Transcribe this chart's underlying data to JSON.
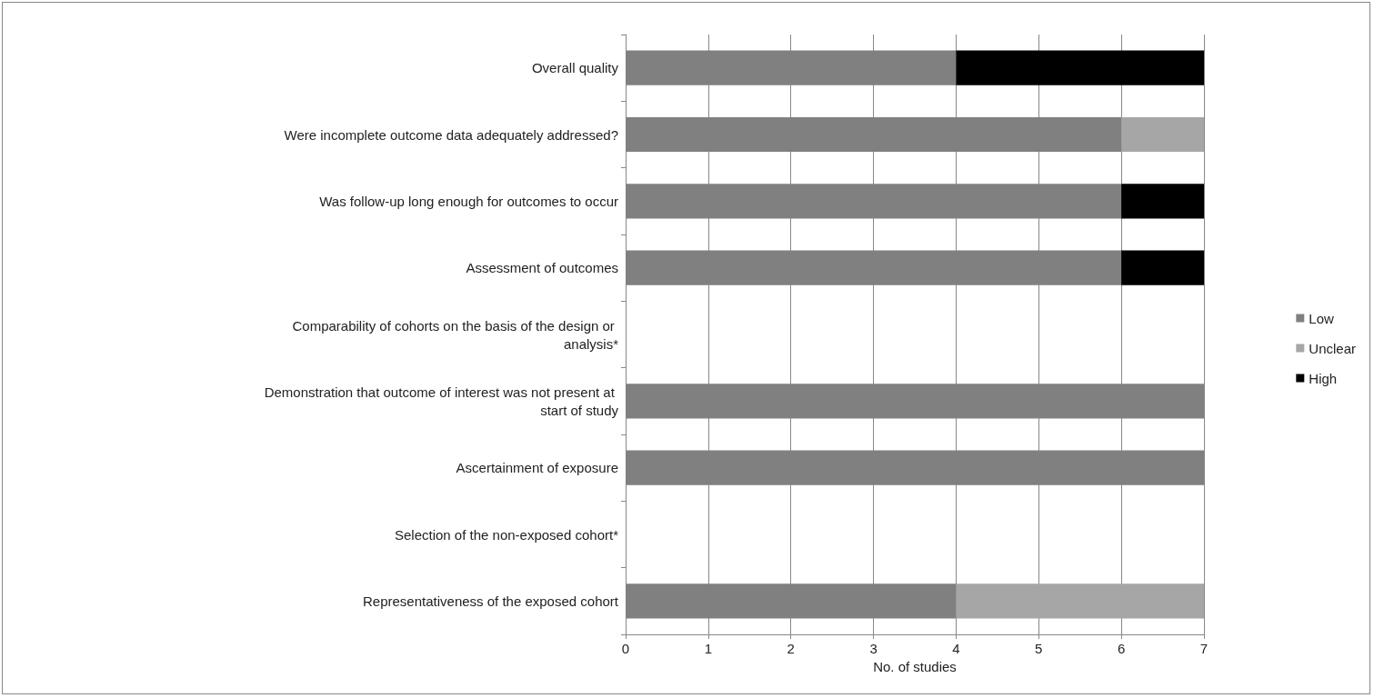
{
  "chart_data": {
    "type": "bar",
    "orientation": "horizontal",
    "stacked": true,
    "categories": [
      "Overall quality",
      "Were incomplete outcome data adequately addressed?",
      "Was follow-up long enough for outcomes to occur",
      "Assessment of outcomes",
      "Comparability of cohorts on the basis of the design or analysis*",
      "Demonstration that outcome of interest was not present at start of study",
      "Ascertainment of exposure",
      "Selection of the non-exposed cohort*",
      "Representativeness of the exposed cohort"
    ],
    "series": [
      {
        "name": "Low",
        "color": "#808080",
        "values": [
          4,
          6,
          6,
          6,
          0,
          7,
          7,
          0,
          4
        ]
      },
      {
        "name": "Unclear",
        "color": "#a6a6a6",
        "values": [
          0,
          1,
          0,
          0,
          0,
          0,
          0,
          0,
          3
        ]
      },
      {
        "name": "High",
        "color": "#000000",
        "values": [
          3,
          0,
          1,
          1,
          0,
          0,
          0,
          0,
          0
        ]
      }
    ],
    "xlabel": "No. of studies",
    "xlim": [
      0,
      7
    ],
    "xticks": [
      0,
      1,
      2,
      3,
      4,
      5,
      6,
      7
    ],
    "grid": "x",
    "legend": "right"
  }
}
